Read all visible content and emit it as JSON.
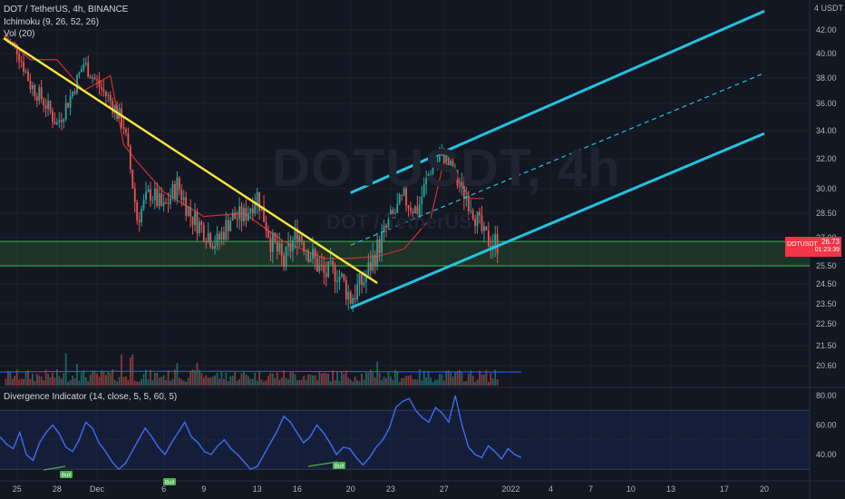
{
  "header": {
    "symbol_line": "DOT / TetherUS, 4h, BINANCE",
    "ichimoku": "Ichimoku (9, 26, 52, 26)",
    "volume": "Vol (20)",
    "oscillator": "Divergence Indicator (14, close, 5, 5, 60, 5)",
    "watermark_big": "DOTUSDT, 4h",
    "watermark_small": "DOT / TetherUS"
  },
  "price_tag": {
    "symbol": "DOTUSDT",
    "value": "26.73",
    "countdown": "01:23:39"
  },
  "colors": {
    "background": "#131722",
    "up": "#26a69a",
    "down": "#ef5350",
    "trendline": "#f7e83a",
    "channel": "#22c3e0",
    "ichimoku_line": "#d32f2f",
    "oscillator": "#3d6cf0",
    "zone_border": "#3fb950",
    "bull_label": "#4caf50"
  },
  "chart_data": [
    {
      "type": "candlestick",
      "title": "DOT / TetherUS, 4h, BINANCE",
      "unit_label": "USDT",
      "y_ticks": [
        "42.00",
        "40.00",
        "38.00",
        "36.00",
        "34.00",
        "32.00",
        "30.00",
        "28.50",
        "27.00",
        "25.50",
        "24.50",
        "23.50",
        "22.50",
        "21.50",
        "20.60"
      ],
      "x_ticks": [
        "25",
        "28",
        "Dec",
        "6",
        "9",
        "13",
        "16",
        "20",
        "23",
        "27",
        "2022",
        "4",
        "7",
        "10",
        "13",
        "17",
        "20"
      ],
      "current_price": 26.73,
      "support_zone": [
        25.5,
        26.8
      ],
      "descending_trendline": [
        {
          "x": "Nov 24",
          "y": 41.3
        },
        {
          "x": "Dec 22",
          "y": 24.55
        }
      ],
      "ascending_channel": {
        "upper": [
          {
            "x": "Dec 20",
            "y": 29.75
          },
          {
            "x": "Jan 20",
            "y": 43.6
          }
        ],
        "middle": [
          {
            "x": "Dec 20",
            "y": 26.6
          },
          {
            "x": "Jan 20",
            "y": 38.4
          }
        ],
        "lower": [
          {
            "x": "Dec 20",
            "y": 23.3
          },
          {
            "x": "Jan 20",
            "y": 33.8
          }
        ]
      },
      "close_path": [
        [
          "Nov 24",
          41.3
        ],
        [
          "Nov 25",
          40.4
        ],
        [
          "Nov 26",
          37.5
        ],
        [
          "Nov 27",
          36.2
        ],
        [
          "Nov 28",
          34.5
        ],
        [
          "Nov 29",
          36.5
        ],
        [
          "Nov 30",
          39.2
        ],
        [
          "Dec 1",
          37.6
        ],
        [
          "Dec 2",
          36.2
        ],
        [
          "Dec 3",
          34.4
        ],
        [
          "Dec 4",
          28.2
        ],
        [
          "Dec 5",
          29.8
        ],
        [
          "Dec 6",
          28.7
        ],
        [
          "Dec 7",
          30.3
        ],
        [
          "Dec 8",
          28.4
        ],
        [
          "Dec 9",
          27.5
        ],
        [
          "Dec 10",
          26.7
        ],
        [
          "Dec 11",
          28.2
        ],
        [
          "Dec 12",
          28.3
        ],
        [
          "Dec 13",
          29.6
        ],
        [
          "Dec 14",
          26.9
        ],
        [
          "Dec 15",
          25.6
        ],
        [
          "Dec 16",
          27.4
        ],
        [
          "Dec 17",
          26.1
        ],
        [
          "Dec 18",
          25.0
        ],
        [
          "Dec 19",
          25.2
        ],
        [
          "Dec 20",
          23.8
        ],
        [
          "Dec 21",
          24.7
        ],
        [
          "Dec 22",
          26.4
        ],
        [
          "Dec 23",
          28.1
        ],
        [
          "Dec 24",
          29.4
        ],
        [
          "Dec 25",
          28.6
        ],
        [
          "Dec 26",
          31.4
        ],
        [
          "Dec 27",
          32.3
        ],
        [
          "Dec 28",
          30.4
        ],
        [
          "Dec 29",
          29.1
        ],
        [
          "Dec 30",
          27.0
        ],
        [
          "Dec 31",
          26.73
        ]
      ],
      "ichimoku_base": [
        [
          "Nov 24",
          41.5
        ],
        [
          "Nov 26",
          39.5
        ],
        [
          "Nov 28",
          39.5
        ],
        [
          "Nov 30",
          37.0
        ],
        [
          "Dec 2",
          38.2
        ],
        [
          "Dec 3",
          33.0
        ],
        [
          "Dec 4",
          31.8
        ],
        [
          "Dec 6",
          29.8
        ],
        [
          "Dec 9",
          28.3
        ],
        [
          "Dec 12",
          28.5
        ],
        [
          "Dec 15",
          26.8
        ],
        [
          "Dec 18",
          25.9
        ],
        [
          "Dec 20",
          25.9
        ],
        [
          "Dec 22",
          26.0
        ],
        [
          "Dec 24",
          26.4
        ],
        [
          "Dec 26",
          28.2
        ],
        [
          "Dec 27",
          31.9
        ],
        [
          "Dec 29",
          29.4
        ],
        [
          "Dec 30",
          29.4
        ]
      ]
    },
    {
      "type": "line",
      "title": "Divergence Indicator (14, close, 5, 5, 60, 5)",
      "y_ticks": [
        "80.00",
        "60.00",
        "40.00"
      ],
      "bands": [
        30,
        70
      ],
      "annotations": [
        "Bull",
        "Bull",
        "Bull"
      ],
      "values": [
        52,
        47,
        44,
        55,
        40,
        36,
        48,
        55,
        60,
        54,
        45,
        42,
        50,
        62,
        58,
        48,
        42,
        35,
        30,
        34,
        42,
        50,
        58,
        52,
        45,
        40,
        48,
        55,
        62,
        52,
        48,
        42,
        40,
        46,
        50,
        44,
        40,
        35,
        30,
        32,
        40,
        48,
        56,
        66,
        62,
        55,
        48,
        52,
        60,
        55,
        48,
        40,
        45,
        44,
        38,
        33,
        38,
        45,
        50,
        58,
        72,
        76,
        78,
        70,
        65,
        62,
        72,
        68,
        62,
        80,
        60,
        45,
        40,
        38,
        46,
        42,
        37,
        44,
        40,
        38
      ]
    }
  ],
  "oscillator_labels": {
    "bull": "Bull"
  }
}
